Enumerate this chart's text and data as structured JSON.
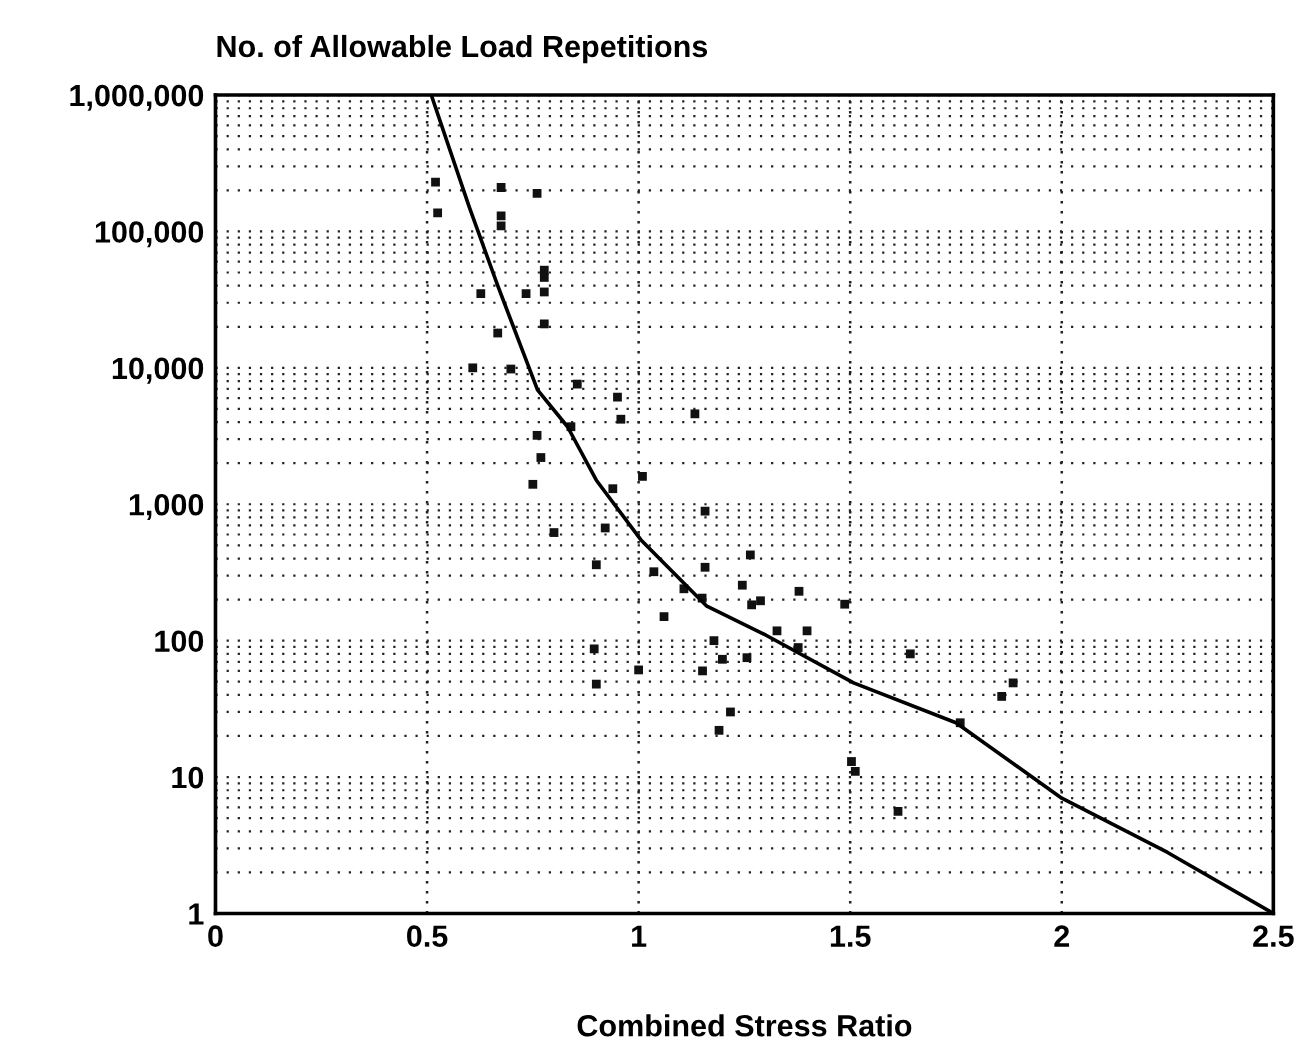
{
  "chart_data": {
    "type": "scatter",
    "ylabel": "No. of Allowable Load Repetitions",
    "xlabel": "Combined Stress Ratio",
    "xlim": [
      0,
      2.5
    ],
    "xticks": [
      0,
      0.5,
      1,
      1.5,
      2,
      2.5
    ],
    "ylim": [
      1,
      1000000
    ],
    "yticks": [
      {
        "value": 1,
        "label": "1"
      },
      {
        "value": 10,
        "label": "10"
      },
      {
        "value": 100,
        "label": "100"
      },
      {
        "value": 1000,
        "label": "1,000"
      },
      {
        "value": 10000,
        "label": "10,000"
      },
      {
        "value": 100000,
        "label": "100,000"
      },
      {
        "value": 1000000,
        "label": "1,000,000"
      }
    ],
    "log": "y",
    "grid": true,
    "series": [
      {
        "color": "#111111",
        "marker": "square",
        "x": [
          0.52,
          0.525,
          0.675,
          0.76,
          0.675,
          0.675,
          0.777,
          0.777,
          0.627,
          0.734,
          0.777,
          0.667,
          0.777,
          0.608,
          0.698,
          0.855,
          0.95,
          0.958,
          1.133,
          0.84,
          0.76,
          0.769,
          0.75,
          0.939,
          1.009,
          0.8,
          0.921,
          1.157,
          1.157,
          0.9,
          1.036,
          1.107,
          1.15,
          1.06,
          1.264,
          1.245,
          1.379,
          1.267,
          1.288,
          1.487,
          1.327,
          1.398,
          1.178,
          1.377,
          1.151,
          1.198,
          1.256,
          1.642,
          1.885,
          1.858,
          1.217,
          1.19,
          1.76,
          1.503,
          1.512,
          1.613,
          0.895,
          0.9,
          1.0
        ],
        "values": [
          230000,
          137000,
          210000,
          190000,
          130000,
          110000,
          52000,
          46000,
          35000,
          35000,
          36000,
          18000,
          21000,
          10000,
          9800,
          7600,
          6100,
          4200,
          4600,
          3700,
          3200,
          2200,
          1400,
          1300,
          1600,
          620,
          670,
          890,
          345,
          360,
          320,
          240,
          205,
          150,
          425,
          255,
          230,
          183,
          196,
          185,
          118,
          118,
          100,
          89,
          60,
          73,
          75,
          80,
          49,
          39,
          30,
          22,
          25,
          13,
          11,
          5.6,
          87,
          48,
          61
        ]
      },
      {
        "type": "line",
        "color": "#000000",
        "marker": "none",
        "line_style": "solid",
        "x": [
          0.51,
          0.6,
          0.667,
          0.761,
          0.832,
          0.9,
          1.005,
          1.16,
          1.3,
          1.508,
          1.75,
          2.0,
          2.25,
          2.5
        ],
        "values": [
          1000000,
          150000,
          40000,
          6900,
          3700,
          1500,
          550,
          180,
          110,
          49,
          25,
          7,
          2.8,
          1
        ]
      }
    ]
  }
}
